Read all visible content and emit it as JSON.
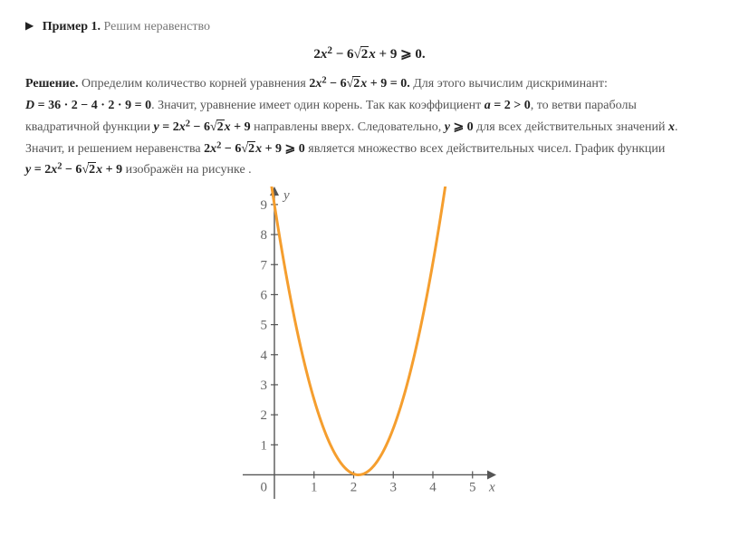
{
  "heading": {
    "label": "Пример 1.",
    "task": "Решим неравенство"
  },
  "display_inequality": "2x² − 6√2x + 9 ⩾ 0.",
  "solution": {
    "label": "Решение.",
    "t1": "Определим количество корней уравнения ",
    "eq1": "2x² − 6√2x + 9 = 0.",
    "t2": " Для этого вычислим дискриминант: ",
    "discr": "D = 36 · 2 − 4 · 2 · 9 = 0",
    "t3": ". Значит,  уравнение имеет один корень. Так как коэффициент ",
    "coef": "a = 2 > 0",
    "t4": ", то ветви параболы квадратичной функции ",
    "func": "y = 2x² − 6√2x + 9",
    "t5": " направлены вверх. Следовательно,  ",
    "yge": "y ⩾ 0",
    "t6": " для всех действительных значений ",
    "xv": "x",
    "t7": ". Значит, и решением неравенства ",
    "ineq2": "2x² − 6√2x + 9 ⩾ 0",
    "t8": " является  множество всех действительных  чисел. График функции ",
    "func2": "y = 2x² − 6√2x + 9",
    "t9": " изображён на рисунке ."
  },
  "chart": {
    "type": "line",
    "curve_color": "#f59e2e",
    "axis_color": "#555555",
    "label_color": "#666666",
    "background": "#ffffff",
    "x_label": "x",
    "y_label": "y",
    "xlim": [
      -0.8,
      5.6
    ],
    "ylim": [
      -0.8,
      9.6
    ],
    "x_ticks": [
      1,
      2,
      3,
      4,
      5
    ],
    "y_ticks": [
      1,
      2,
      3,
      4,
      5,
      6,
      7,
      8,
      9
    ],
    "origin_label": "0",
    "vertex": [
      2.1213,
      0
    ],
    "a": 2,
    "line_width": 3,
    "tick_fontsize": 15
  }
}
